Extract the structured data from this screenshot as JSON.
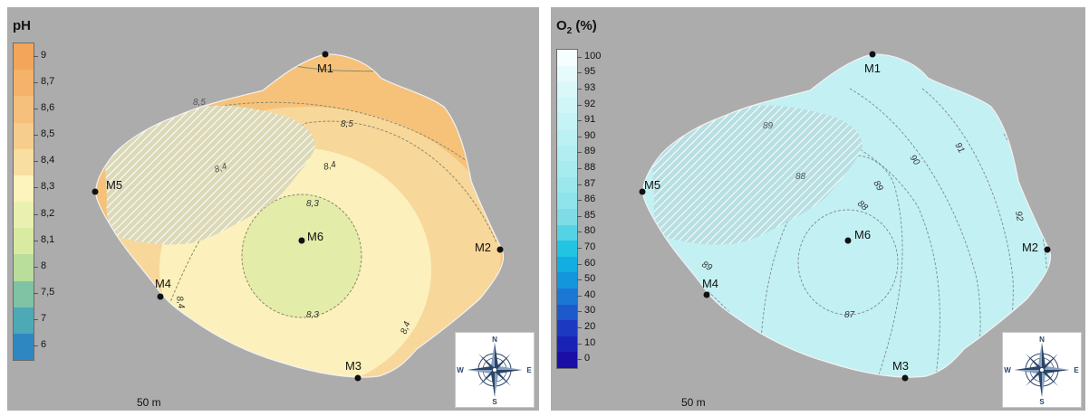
{
  "ph_panel": {
    "legend_title": "pH",
    "legend_ticks": [
      "9",
      "8,7",
      "8,6",
      "8,5",
      "8,4",
      "8,3",
      "8,2",
      "8,1",
      "8",
      "7,5",
      "7",
      "6"
    ],
    "legend_colors": [
      "#f3a55a",
      "#f4b26a",
      "#f5bf7c",
      "#f7cd8d",
      "#f9dea2",
      "#fdf3bd",
      "#eaf1b0",
      "#d8eba0",
      "#b9dd9b",
      "#7fc3a4",
      "#4ea9b6",
      "#2f87c2"
    ],
    "region_colors": {
      "outer": "#f6c27a",
      "band_85": "#f8d79a",
      "band_84": "#fcf1bc",
      "core": "#e3eca9"
    },
    "contour_labels": [
      "8,5",
      "8,5",
      "8,4",
      "8,4",
      "8,3",
      "8,3",
      "8,4",
      "8,4"
    ],
    "scale_label": "50 m"
  },
  "o2_panel": {
    "legend_title_main": "O",
    "legend_title_sub": "2",
    "legend_title_suffix": " (%)",
    "legend_ticks": [
      "100",
      "95",
      "93",
      "92",
      "91",
      "90",
      "89",
      "88",
      "87",
      "86",
      "85",
      "80",
      "70",
      "60",
      "50",
      "40",
      "30",
      "20",
      "10",
      "0"
    ],
    "legend_colors": [
      "#f5ffff",
      "#e6fbfb",
      "#dbf8f9",
      "#d0f6f7",
      "#c6f3f5",
      "#bcf1f3",
      "#b2eef1",
      "#a7ebef",
      "#9be7ec",
      "#8fe3ea",
      "#7fdce6",
      "#54d3e5",
      "#22c4e1",
      "#12ade1",
      "#1496dd",
      "#1a78d4",
      "#1d59cb",
      "#1c3ac1",
      "#1a22b5",
      "#1a0ea7"
    ],
    "region_color": "#c3f0f3",
    "contour_labels": [
      "89",
      "88",
      "90",
      "91",
      "89",
      "88",
      "92",
      "89",
      "87"
    ],
    "scale_label": "50 m"
  },
  "stations": {
    "m1": "M1",
    "m2": "M2",
    "m3": "M3",
    "m4": "M4",
    "m5": "M5",
    "m6": "M6"
  },
  "compass": {
    "n": "N",
    "s": "S",
    "e": "E",
    "w": "W"
  }
}
